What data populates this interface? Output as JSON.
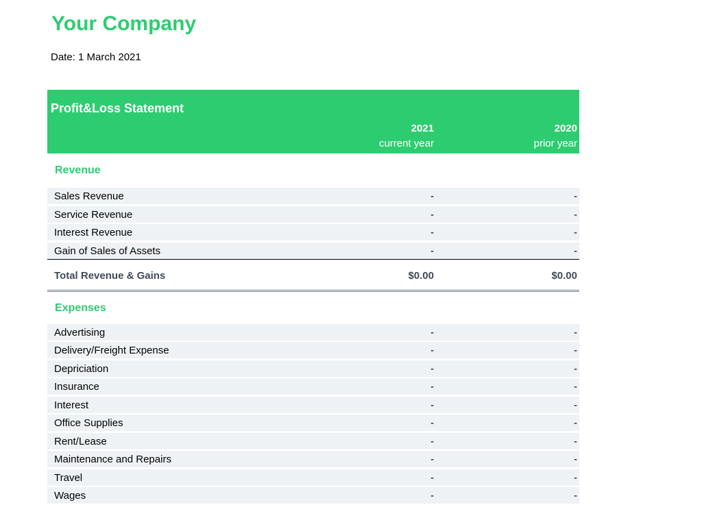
{
  "company": "Your Company",
  "date": "Date: 1 March 2021",
  "statement": {
    "title": "Profit&Loss Statement",
    "col1_year": "2021",
    "col1_sub": "current year",
    "col2_year": "2020",
    "col2_sub": "prior year"
  },
  "revenue": {
    "title": "Revenue",
    "rows": [
      {
        "label": "Sales Revenue",
        "v1": "-",
        "v2": "-"
      },
      {
        "label": "Service Revenue",
        "v1": "-",
        "v2": "-"
      },
      {
        "label": "Interest Revenue",
        "v1": "-",
        "v2": "-"
      },
      {
        "label": "Gain of Sales of Assets",
        "v1": "-",
        "v2": "-"
      }
    ],
    "total": {
      "label": "Total Revenue & Gains",
      "v1": "$0.00",
      "v2": "$0.00"
    }
  },
  "expenses": {
    "title": "Expenses",
    "rows": [
      {
        "label": "Advertising",
        "v1": "-",
        "v2": "-"
      },
      {
        "label": "Delivery/Freight Expense",
        "v1": "-",
        "v2": "-"
      },
      {
        "label": "Depriciation",
        "v1": "-",
        "v2": "-"
      },
      {
        "label": "Insurance",
        "v1": "-",
        "v2": "-"
      },
      {
        "label": "Interest",
        "v1": "-",
        "v2": "-"
      },
      {
        "label": "Office Supplies",
        "v1": "-",
        "v2": "-"
      },
      {
        "label": "Rent/Lease",
        "v1": "-",
        "v2": "-"
      },
      {
        "label": "Maintenance and Repairs",
        "v1": "-",
        "v2": "-"
      },
      {
        "label": "Travel",
        "v1": "-",
        "v2": "-"
      },
      {
        "label": "Wages",
        "v1": "-",
        "v2": "-"
      }
    ]
  },
  "colors": {
    "accent": "#2ecc71",
    "row_bg": "#eef2f5",
    "total_text": "#3f4a5a"
  }
}
